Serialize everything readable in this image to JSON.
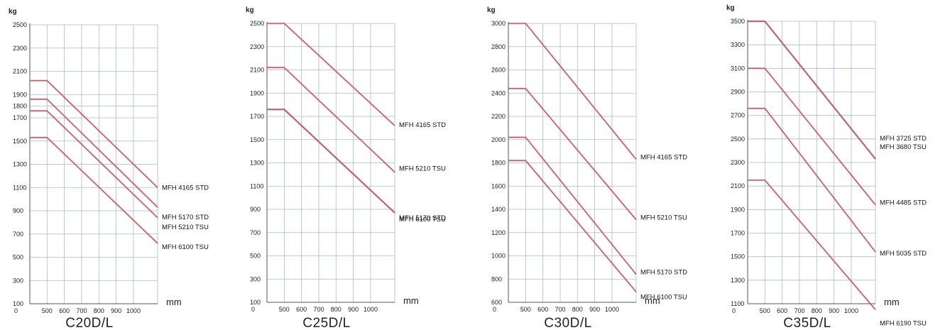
{
  "chart_data": [
    {
      "type": "line",
      "model_label": "C20D/L",
      "ylabel": "kg",
      "xlabel": "mm",
      "ylim": [
        100,
        2500
      ],
      "y_ticks": [
        100,
        300,
        500,
        700,
        900,
        1100,
        1300,
        1500,
        1700,
        1800,
        1900,
        2100,
        2300,
        2500
      ],
      "y_tick_labels": [
        "100",
        "300",
        "500",
        "700",
        "900",
        "1100",
        "1300",
        "1500",
        "1700",
        "1800",
        "1900",
        "2100",
        "2300",
        "2500"
      ],
      "xlim": [
        400,
        1140
      ],
      "x_ticks": [
        500,
        600,
        700,
        800,
        900,
        1000
      ],
      "x_tick_labels": [
        "500",
        "600",
        "700",
        "800",
        "900",
        "1000"
      ],
      "x_origin_label": "0",
      "grid": true,
      "series": [
        {
          "name": "MFH 4165 STD",
          "points": [
            [
              400,
              2020
            ],
            [
              500,
              2020
            ],
            [
              1140,
              1100
            ]
          ]
        },
        {
          "name": "MFH 5210 TSU",
          "points": [
            [
              400,
              1860
            ],
            [
              500,
              1860
            ],
            [
              1140,
              930
            ]
          ]
        },
        {
          "name": "MFH 5170 STD",
          "points": [
            [
              400,
              1760
            ],
            [
              500,
              1760
            ],
            [
              1140,
              840
            ]
          ]
        },
        {
          "name": "MFH 6100 TSU",
          "points": [
            [
              400,
              1530
            ],
            [
              500,
              1530
            ],
            [
              1140,
              620
            ]
          ]
        }
      ]
    },
    {
      "type": "line",
      "model_label": "C25D/L",
      "ylabel": "kg",
      "xlabel": "mm",
      "ylim": [
        100,
        2500
      ],
      "y_ticks": [
        100,
        300,
        500,
        700,
        900,
        1100,
        1300,
        1500,
        1700,
        1900,
        2100,
        2300,
        2500
      ],
      "y_tick_labels": [
        "100",
        "300",
        "500",
        "700",
        "900",
        "1100",
        "1300",
        "1500",
        "1700",
        "1900",
        "2100",
        "2300",
        "2500"
      ],
      "xlim": [
        400,
        1140
      ],
      "x_ticks": [
        500,
        600,
        700,
        800,
        900,
        1000
      ],
      "x_tick_labels": [
        "500",
        "600",
        "700",
        "800",
        "900",
        "1000"
      ],
      "x_origin_label": "0",
      "grid": true,
      "series": [
        {
          "name": "MFH 4165 STD",
          "points": [
            [
              400,
              2500
            ],
            [
              500,
              2500
            ],
            [
              1140,
              1620
            ]
          ]
        },
        {
          "name": "MFH 5210 TSU",
          "points": [
            [
              400,
              2120
            ],
            [
              500,
              2120
            ],
            [
              1140,
              1220
            ]
          ]
        },
        {
          "name": "MFH 5170 STD",
          "points": [
            [
              400,
              1760
            ],
            [
              500,
              1760
            ],
            [
              1140,
              870
            ]
          ]
        },
        {
          "name": "MFH 6100 TSU",
          "points": [
            [
              400,
              1760
            ],
            [
              500,
              1760
            ],
            [
              1140,
              870
            ]
          ]
        }
      ]
    },
    {
      "type": "line",
      "model_label": "C30D/L",
      "ylabel": "kg",
      "xlabel": "mm",
      "ylim": [
        600,
        3000
      ],
      "y_ticks": [
        600,
        800,
        1000,
        1200,
        1400,
        1600,
        1800,
        2000,
        2200,
        2400,
        2600,
        2800,
        3000
      ],
      "y_tick_labels": [
        "600",
        "800",
        "1000",
        "1200",
        "1400",
        "1600",
        "1800",
        "2000",
        "2200",
        "2400",
        "2600",
        "2800",
        "3000"
      ],
      "xlim": [
        400,
        1140
      ],
      "x_ticks": [
        500,
        600,
        700,
        800,
        900,
        1000
      ],
      "x_tick_labels": [
        "500",
        "600",
        "700",
        "800",
        "900",
        "1000"
      ],
      "x_origin_label": "0",
      "grid": true,
      "series": [
        {
          "name": "MFH 4165 STD",
          "points": [
            [
              400,
              3000
            ],
            [
              500,
              3000
            ],
            [
              1140,
              1830
            ]
          ]
        },
        {
          "name": "MFH 5210 TSU",
          "points": [
            [
              400,
              2440
            ],
            [
              500,
              2440
            ],
            [
              1140,
              1310
            ]
          ]
        },
        {
          "name": "MFH 5170 STD",
          "points": [
            [
              400,
              2020
            ],
            [
              500,
              2020
            ],
            [
              1140,
              840
            ]
          ]
        },
        {
          "name": "MFH 6100 TSU",
          "points": [
            [
              400,
              1820
            ],
            [
              500,
              1820
            ],
            [
              1140,
              690
            ]
          ]
        }
      ]
    },
    {
      "type": "line",
      "model_label": "C35D/L",
      "ylabel": "kg",
      "xlabel": "mm",
      "ylim": [
        1100,
        3500
      ],
      "y_ticks": [
        1100,
        1300,
        1500,
        1700,
        1900,
        2100,
        2300,
        2500,
        2700,
        2900,
        3100,
        3300,
        3500
      ],
      "y_tick_labels": [
        "1100",
        "1300",
        "1500",
        "1700",
        "1900",
        "2100",
        "2300",
        "2500",
        "2700",
        "2900",
        "3100",
        "3300",
        "3500"
      ],
      "xlim": [
        400,
        1140
      ],
      "x_ticks": [
        500,
        600,
        700,
        800,
        900,
        1000
      ],
      "x_tick_labels": [
        "500",
        "600",
        "700",
        "800",
        "900",
        "1000"
      ],
      "x_origin_label": "0",
      "grid": true,
      "series": [
        {
          "name": "MFH 3725 STD",
          "points": [
            [
              400,
              3500
            ],
            [
              500,
              3500
            ],
            [
              1140,
              2330
            ]
          ]
        },
        {
          "name": "MFH 3680 TSU",
          "points": [
            [
              400,
              3500
            ],
            [
              500,
              3500
            ],
            [
              1140,
              2330
            ]
          ]
        },
        {
          "name": "MFH 4485 STD",
          "points": [
            [
              400,
              3100
            ],
            [
              500,
              3100
            ],
            [
              1140,
              1940
            ]
          ]
        },
        {
          "name": "MFH 5035 STD",
          "points": [
            [
              400,
              2760
            ],
            [
              500,
              2760
            ],
            [
              1140,
              1540
            ]
          ]
        },
        {
          "name": "MFH 6190 TSU",
          "points": [
            [
              400,
              2150
            ],
            [
              500,
              2150
            ],
            [
              1140,
              1050
            ]
          ]
        }
      ]
    }
  ],
  "colors": {
    "curve": "#e04b5a",
    "curve_outline": "#6a6a6a",
    "grid": "#a9b8d2",
    "text": "#222222"
  }
}
